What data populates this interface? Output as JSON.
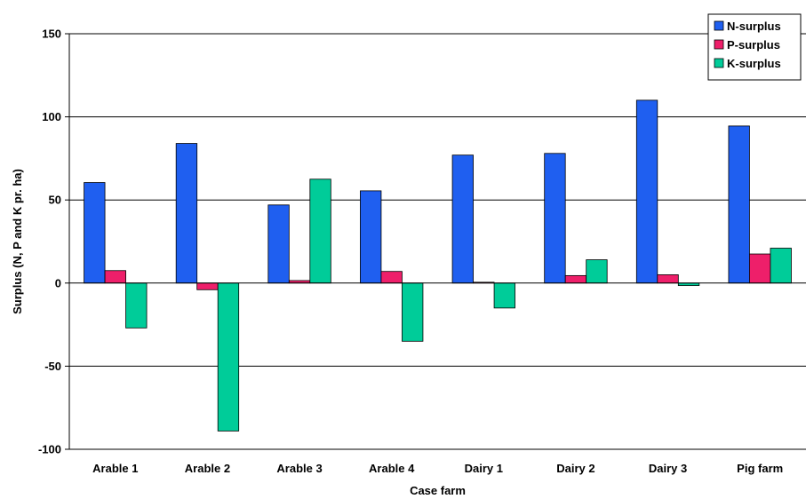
{
  "chart_data": {
    "type": "bar",
    "title": "",
    "xlabel": "Case farm",
    "ylabel": "Surplus  (N, P and K pr. ha)",
    "ylim": [
      -100,
      150
    ],
    "yticks": [
      150,
      100,
      50,
      0,
      -50,
      -100
    ],
    "grid": true,
    "legend_position": "top-right",
    "categories": [
      "Arable 1",
      "Arable 2",
      "Arable 3",
      "Arable 4",
      "Dairy 1",
      "Dairy 2",
      "Dairy 3",
      "Pig farm"
    ],
    "series": [
      {
        "name": "N-surplus",
        "color": "#1f5ff0",
        "values": [
          60.5,
          84,
          47,
          55.5,
          77,
          78,
          110,
          94.5
        ]
      },
      {
        "name": "P-surplus",
        "color": "#ee1f6a",
        "values": [
          7.5,
          -4,
          1.5,
          7,
          0.5,
          4.5,
          5,
          17.5
        ]
      },
      {
        "name": "K-surplus",
        "color": "#00cc99",
        "values": [
          -27,
          -89,
          62.5,
          -35,
          -15,
          14,
          -1.5,
          21
        ]
      }
    ]
  }
}
